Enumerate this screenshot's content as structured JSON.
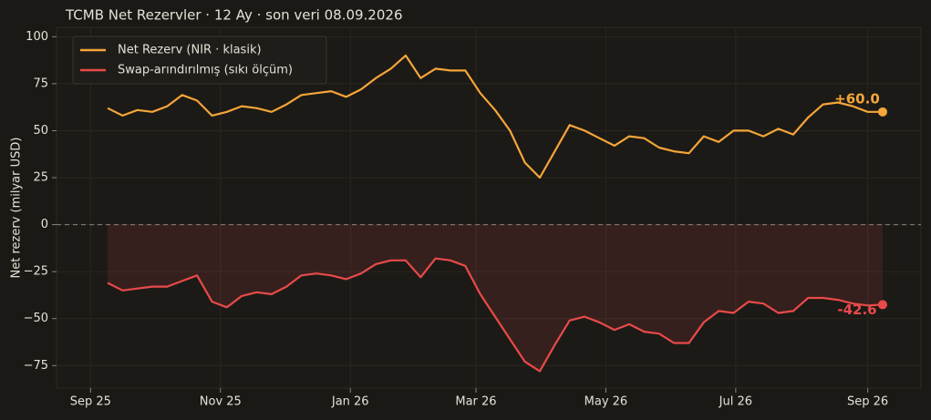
{
  "chart_data": {
    "type": "line",
    "title": "TCMB Net Rezervler · 12 Ay · son veri 08.09.2026",
    "y_label": "Net rezerv (milyar USD)",
    "x": [
      "2025-09-09",
      "2025-09-16",
      "2025-09-23",
      "2025-09-30",
      "2025-10-07",
      "2025-10-14",
      "2025-10-21",
      "2025-10-28",
      "2025-11-04",
      "2025-11-11",
      "2025-11-18",
      "2025-11-25",
      "2025-12-02",
      "2025-12-09",
      "2025-12-16",
      "2025-12-23",
      "2025-12-30",
      "2026-01-06",
      "2026-01-13",
      "2026-01-20",
      "2026-01-27",
      "2026-02-03",
      "2026-02-10",
      "2026-02-17",
      "2026-02-24",
      "2026-03-03",
      "2026-03-10",
      "2026-03-17",
      "2026-03-24",
      "2026-03-31",
      "2026-04-07",
      "2026-04-14",
      "2026-04-21",
      "2026-04-28",
      "2026-05-05",
      "2026-05-12",
      "2026-05-19",
      "2026-05-26",
      "2026-06-02",
      "2026-06-09",
      "2026-06-16",
      "2026-06-23",
      "2026-06-30",
      "2026-07-07",
      "2026-07-14",
      "2026-07-21",
      "2026-07-28",
      "2026-08-04",
      "2026-08-11",
      "2026-08-18",
      "2026-08-25",
      "2026-09-01",
      "2026-09-08"
    ],
    "series": [
      {
        "name": "Net Rezerv (NIR · klasik)",
        "color": "#f5a53a",
        "end_label": "+60.0",
        "values": [
          62,
          58,
          61,
          60,
          63,
          69,
          66,
          58,
          60,
          63,
          62,
          60,
          64,
          69,
          70,
          71,
          68,
          72,
          78,
          83,
          90,
          78,
          83,
          82,
          82,
          70,
          61,
          50,
          33,
          25,
          39,
          53,
          50,
          46,
          42,
          47,
          46,
          41,
          39,
          38,
          47,
          44,
          50,
          50,
          47,
          51,
          48,
          57,
          64,
          65,
          63,
          60,
          60.0
        ]
      },
      {
        "name": "Swap-arındırılmış (sıkı ölçüm)",
        "color": "#e84a4a",
        "end_label": "-42.6",
        "fill": true,
        "values": [
          -31,
          -35,
          -34,
          -33,
          -33,
          -30,
          -27,
          -41,
          -44,
          -38,
          -36,
          -37,
          -33,
          -27,
          -26,
          -27,
          -29,
          -26,
          -21,
          -19,
          -19,
          -28,
          -18,
          -19,
          -22,
          -37,
          -49,
          -61,
          -73,
          -78,
          -64,
          -51,
          -49,
          -52,
          -56,
          -53,
          -57,
          -58,
          -63,
          -63,
          -52,
          -46,
          -47,
          -41,
          -42,
          -47,
          -46,
          -39,
          -39,
          -40,
          -42,
          -43,
          -42.6
        ]
      }
    ],
    "xlim": [
      "2025-08-16",
      "2026-09-26"
    ],
    "xticks": [
      {
        "value": "2025-09-01",
        "label": "Sep 25"
      },
      {
        "value": "2025-11-01",
        "label": "Nov 25"
      },
      {
        "value": "2026-01-01",
        "label": "Jan 26"
      },
      {
        "value": "2026-03-01",
        "label": "Mar 26"
      },
      {
        "value": "2026-05-01",
        "label": "May 26"
      },
      {
        "value": "2026-07-01",
        "label": "Jul 26"
      },
      {
        "value": "2026-09-01",
        "label": "Sep 26"
      }
    ],
    "ylim": [
      -87,
      105
    ],
    "yticks": [
      100,
      75,
      50,
      25,
      0,
      {
        "value": -25,
        "label": "−25"
      },
      {
        "value": -50,
        "label": "−50"
      },
      {
        "value": -75,
        "label": "−75"
      }
    ],
    "grid": true,
    "zero_line": true,
    "legend": "upper left"
  }
}
